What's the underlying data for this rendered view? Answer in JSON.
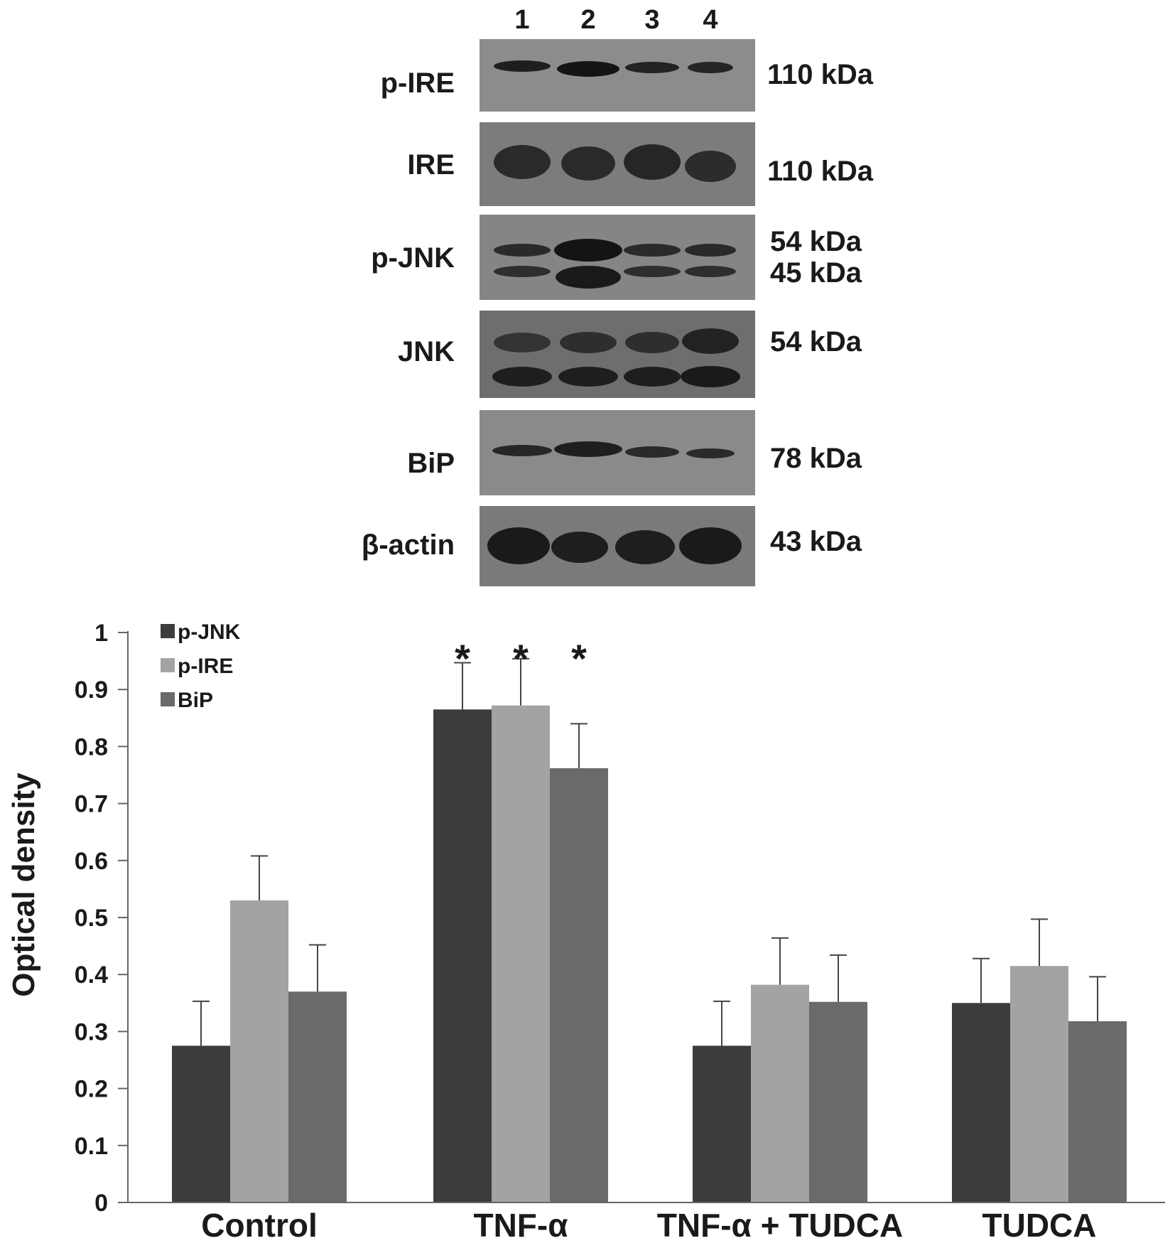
{
  "blot": {
    "lane_labels": [
      "1",
      "2",
      "3",
      "4"
    ],
    "panels": [
      {
        "label": "p-IRE",
        "kda": [
          "110 kDa"
        ]
      },
      {
        "label": "IRE",
        "kda": [
          "110 kDa"
        ]
      },
      {
        "label": "p-JNK",
        "kda": [
          "54 kDa",
          "45 kDa"
        ]
      },
      {
        "label": "JNK",
        "kda": [
          "54 kDa"
        ]
      },
      {
        "label": "BiP",
        "kda": [
          "78 kDa"
        ]
      },
      {
        "label": "β-actin",
        "kda": [
          "43 kDa"
        ]
      }
    ]
  },
  "chart_data": {
    "type": "bar",
    "categories": [
      "Control",
      "TNF-α",
      "TNF-α + TUDCA",
      "TUDCA"
    ],
    "series": [
      {
        "name": "p-JNK",
        "values": [
          0.275,
          0.865,
          0.275,
          0.35
        ],
        "errors": [
          0.078,
          0.082,
          0.078,
          0.078
        ],
        "color": "#3c3c3c"
      },
      {
        "name": "p-IRE",
        "values": [
          0.53,
          0.872,
          0.382,
          0.415
        ],
        "errors": [
          0.078,
          0.082,
          0.082,
          0.082
        ],
        "color": "#a3a3a3"
      },
      {
        "name": "BiP",
        "values": [
          0.37,
          0.762,
          0.352,
          0.318
        ],
        "errors": [
          0.082,
          0.078,
          0.082,
          0.078
        ],
        "color": "#6a6a6a"
      }
    ],
    "significance": [
      {
        "category": "TNF-α",
        "series": "p-JNK",
        "marker": "*"
      },
      {
        "category": "TNF-α",
        "series": "p-IRE",
        "marker": "*"
      },
      {
        "category": "TNF-α",
        "series": "BiP",
        "marker": "*"
      }
    ],
    "ylabel": "Optical density",
    "ylim": [
      0,
      1
    ],
    "yticks": [
      "0",
      "0.1",
      "0.2",
      "0.3",
      "0.4",
      "0.5",
      "0.6",
      "0.7",
      "0.8",
      "0.9",
      "1"
    ],
    "legend_position": "top-left",
    "grid": false
  }
}
